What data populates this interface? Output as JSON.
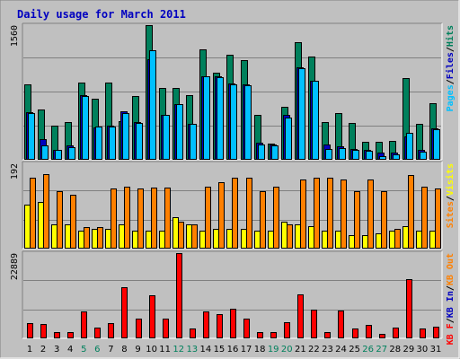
{
  "title": "Daily usage for March 2011",
  "colors": {
    "background": "#C0C0C0",
    "plot_bg": "#C0C0C0",
    "title": "#0000C0",
    "hits": "#00805C",
    "files": "#0000C0",
    "pages": "#00C0FF",
    "visits": "#FFFF00",
    "sites": "#FF8000",
    "kb_out": "#FF8000",
    "kb_in": "#0000C0",
    "kb_f": "#FF0000",
    "weekend": "#00805C",
    "weekday": "#000000",
    "grid": "#808080"
  },
  "chart_data": [
    {
      "type": "bar",
      "name": "hits-files-pages",
      "ymax_label": "1560",
      "ylim": [
        0,
        1560
      ],
      "legend": [
        {
          "label": "Pages",
          "color": "#00C0FF"
        },
        {
          "label": "Files",
          "color": "#0000C0"
        },
        {
          "label": "Hits",
          "color": "#00805C"
        }
      ],
      "separators": [
        "/",
        "/"
      ],
      "categories": [
        "1",
        "2",
        "3",
        "4",
        "5",
        "6",
        "7",
        "8",
        "9",
        "10",
        "11",
        "12",
        "13",
        "14",
        "15",
        "16",
        "17",
        "18",
        "19",
        "20",
        "21",
        "22",
        "23",
        "24",
        "25",
        "26",
        "27",
        "28",
        "29",
        "30",
        "31"
      ],
      "weekend_days": [
        "5",
        "6",
        "12",
        "13",
        "19",
        "20",
        "26",
        "27"
      ],
      "series": [
        {
          "name": "Hits",
          "values": [
            870,
            580,
            400,
            440,
            890,
            710,
            890,
            450,
            740,
            1560,
            830,
            830,
            750,
            1280,
            1010,
            1220,
            1150,
            520,
            190,
            610,
            1360,
            1200,
            440,
            540,
            430,
            210,
            210,
            220,
            950,
            420,
            660
          ]
        },
        {
          "name": "Files",
          "values": [
            550,
            240,
            110,
            170,
            750,
            370,
            390,
            560,
            440,
            1160,
            520,
            640,
            420,
            970,
            970,
            880,
            870,
            200,
            180,
            520,
            1070,
            920,
            180,
            160,
            120,
            110,
            80,
            80,
            270,
            110,
            360
          ]
        },
        {
          "name": "Pages",
          "values": [
            540,
            170,
            110,
            150,
            740,
            380,
            380,
            540,
            430,
            1270,
            520,
            640,
            420,
            970,
            960,
            870,
            860,
            180,
            170,
            490,
            1060,
            910,
            120,
            140,
            110,
            100,
            40,
            60,
            310,
            90,
            350
          ]
        }
      ]
    },
    {
      "type": "bar",
      "name": "visits-sites",
      "ymax_label": "192",
      "ylim": [
        0,
        192
      ],
      "legend": [
        {
          "label": "Sites",
          "color": "#FF8000"
        },
        {
          "label": "Visits",
          "color": "#FFFF00"
        }
      ],
      "separators": [
        "/"
      ],
      "series": [
        {
          "name": "Visits",
          "values": [
            100,
            105,
            55,
            55,
            40,
            45,
            45,
            55,
            40,
            40,
            40,
            70,
            55,
            40,
            45,
            45,
            45,
            40,
            40,
            60,
            55,
            50,
            40,
            40,
            30,
            30,
            35,
            40,
            50,
            40,
            40
          ]
        },
        {
          "name": "Sites",
          "values": [
            160,
            168,
            130,
            122,
            48,
            48,
            135,
            140,
            135,
            138,
            138,
            60,
            55,
            140,
            150,
            160,
            160,
            130,
            140,
            55,
            155,
            160,
            160,
            155,
            130,
            155,
            130,
            45,
            165,
            140,
            135
          ]
        }
      ]
    },
    {
      "type": "bar",
      "name": "kb",
      "ymax_label": "22889",
      "ylim": [
        0,
        22889
      ],
      "legend": [
        {
          "label": "KB F",
          "color": "#FF0000"
        },
        {
          "label": "KB In",
          "color": "#0000C0"
        },
        {
          "label": "KB Out",
          "color": "#FF8000"
        }
      ],
      "separators": [
        "/",
        "/"
      ],
      "series": [
        {
          "name": "KB F",
          "values": [
            4000,
            3800,
            1700,
            1700,
            7300,
            3000,
            4100,
            13700,
            5200,
            11500,
            5200,
            22889,
            2600,
            7300,
            6400,
            8000,
            5200,
            1800,
            1800,
            4400,
            11900,
            7600,
            1700,
            7400,
            2700,
            3700,
            1100,
            2800,
            15900,
            2700,
            3200
          ]
        }
      ]
    }
  ]
}
